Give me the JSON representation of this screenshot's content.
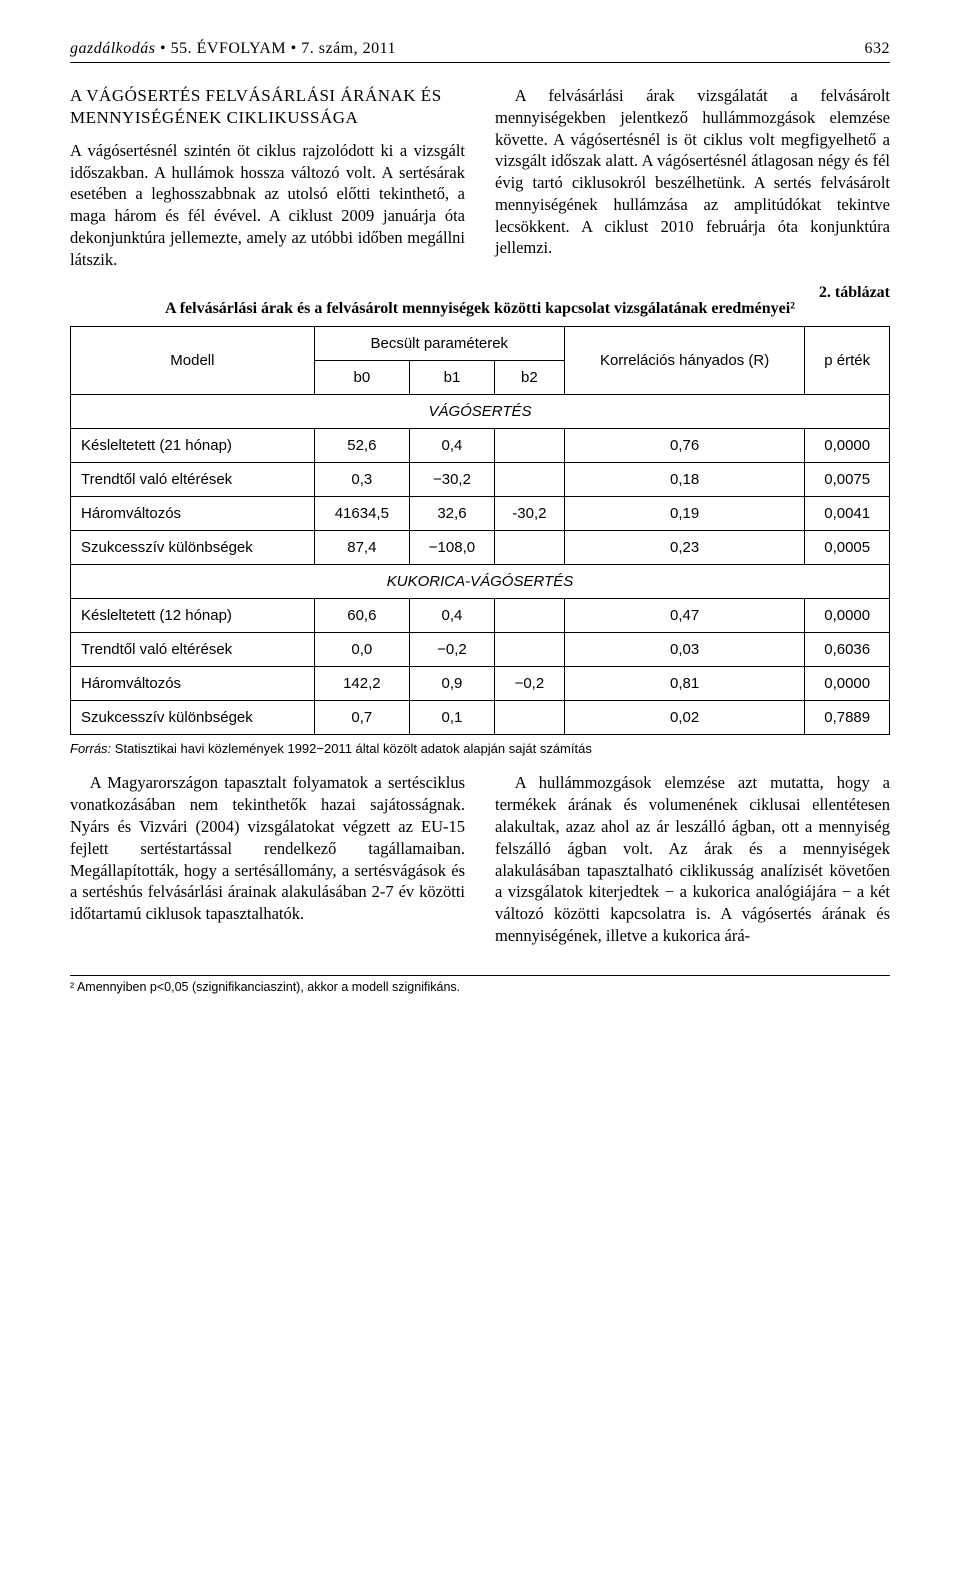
{
  "header": {
    "journal": "gazdálkodás",
    "sep1": " • ",
    "volume": "55. ",
    "volume_word": "ÉVFOLYAM",
    "sep2": " • ",
    "issue": "7. szám, 2011",
    "page_number": "632"
  },
  "section_title": "A VÁGÓSERTÉS FELVÁSÁRLÁSI ÁRÁNAK ÉS MENNYISÉGÉNEK CIKLIKUSSÁGA",
  "para1": "A vágósertésnél szintén öt ciklus rajzolódott ki a vizsgált időszakban. A hullámok hossza változó volt. A sertésárak esetében a leghosszabbnak az utolsó előtti tekinthető, a maga három és fél évével. A ciklust 2009 januárja óta dekonjunktúra jellemezte, amely az utóbbi időben megállni látszik.",
  "para2": "A felvásárlási árak vizsgálatát a felvásárolt mennyiségekben jelentkező hullámmozgások elemzése követte. A vágósertésnél is öt ciklus volt megfigyelhető a vizsgált időszak alatt. A vágósertésnél átlagosan négy és fél évig tartó ciklusokról beszélhetünk. A sertés felvásárolt mennyiségének hullámzása az amplitúdókat tekintve lecsökkent. A ciklust 2010 februárja óta konjunktúra jellemzi.",
  "table": {
    "number": "2. táblázat",
    "title": "A felvásárlási árak és a felvásárolt mennyiségek közötti kapcsolat vizsgálatának eredményei²",
    "headers": {
      "model": "Modell",
      "params": "Becsült paraméterek",
      "b0": "b0",
      "b1": "b1",
      "b2": "b2",
      "corr": "Korrelációs hányados (R)",
      "p": "p érték"
    },
    "section1": "VÁGÓSERTÉS",
    "section2": "KUKORICA-VÁGÓSERTÉS",
    "rows1": [
      {
        "label": "Késleltetett (21 hónap)",
        "b0": "52,6",
        "b1": "0,4",
        "b2": "",
        "r": "0,76",
        "p": "0,0000"
      },
      {
        "label": "Trendtől való eltérések",
        "b0": "0,3",
        "b1": "−30,2",
        "b2": "",
        "r": "0,18",
        "p": "0,0075"
      },
      {
        "label": "Háromváltozós",
        "b0": "41634,5",
        "b1": "32,6",
        "b2": "-30,2",
        "r": "0,19",
        "p": "0,0041"
      },
      {
        "label": "Szukcesszív különbségek",
        "b0": "87,4",
        "b1": "−108,0",
        "b2": "",
        "r": "0,23",
        "p": "0,0005"
      }
    ],
    "rows2": [
      {
        "label": "Késleltetett (12 hónap)",
        "b0": "60,6",
        "b1": "0,4",
        "b2": "",
        "r": "0,47",
        "p": "0,0000"
      },
      {
        "label": "Trendtől való eltérések",
        "b0": "0,0",
        "b1": "−0,2",
        "b2": "",
        "r": "0,03",
        "p": "0,6036"
      },
      {
        "label": "Háromváltozós",
        "b0": "142,2",
        "b1": "0,9",
        "b2": "−0,2",
        "r": "0,81",
        "p": "0,0000"
      },
      {
        "label": "Szukcesszív különbségek",
        "b0": "0,7",
        "b1": "0,1",
        "b2": "",
        "r": "0,02",
        "p": "0,7889"
      }
    ],
    "source_label": "Forrás:",
    "source_text": " Statisztikai havi közlemények 1992−2011 által közölt adatok alapján saját számítás"
  },
  "para3": "A Magyarországon tapasztalt folyamatok a sertésciklus vonatkozásában nem tekinthetők hazai sajátosságnak. Nyárs és Vizvári (2004) vizsgálatokat végzett az EU-15 fejlett sertéstartással rendelkező tagállamaiban. Megállapították, hogy a sertésállomány, a sertésvágások és a sertéshús felvásárlási árainak alakulásában 2-7 év közötti időtartamú ciklusok tapasztalhatók.",
  "para4": "A hullámmozgások elemzése azt mutatta, hogy a termékek árának és volumenének ciklusai ellentétesen alakultak, azaz ahol az ár leszálló ágban, ott a mennyiség felszálló ágban volt. Az árak és a mennyiségek alakulásában tapasztalható ciklikusság analízisét követően a vizsgálatok kiterjedtek − a kukorica analógiájára − a két változó közötti kapcsolatra is. A vágósertés árának és mennyiségének, illetve a kukorica árá-",
  "footnote": "² Amennyiben p<0,05 (szignifikanciaszint), akkor a modell szignifikáns."
}
